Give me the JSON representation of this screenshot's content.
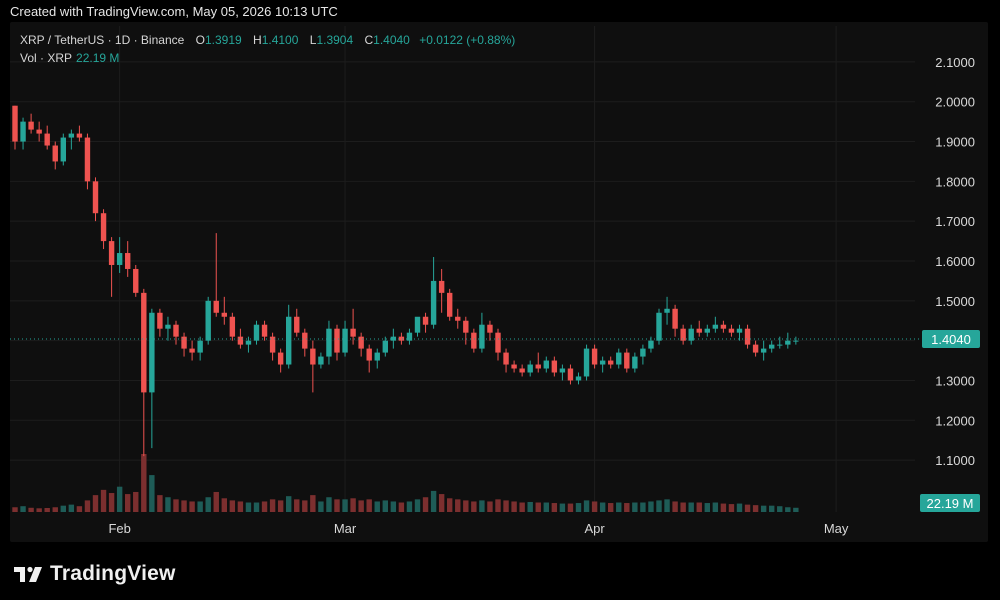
{
  "caption": "Created with TradingView.com, May 05, 2026 10:13 UTC",
  "legend": {
    "symbol": "XRP / TetherUS · 1D · Binance",
    "o_label": "O",
    "o_value": "1.3919",
    "h_label": "H",
    "h_value": "1.4100",
    "l_label": "L",
    "l_value": "1.3904",
    "c_label": "C",
    "c_value": "1.4040",
    "change": "+0.0122 (+0.88%)",
    "vol_label": "Vol · XRP",
    "vol_value": "22.19 M"
  },
  "brand": "TradingView",
  "colors": {
    "up": "#26a69a",
    "down": "#ef5350",
    "up_vol": "#1e5c57",
    "down_vol": "#7c2f2f",
    "bg": "#0f0f0f"
  },
  "chart_data": {
    "type": "candlestick",
    "title": "XRP / TetherUS · 1D · Binance",
    "ylim": [
      1.05,
      2.15
    ],
    "y_ticks": [
      2.1,
      2.0,
      1.9,
      1.8,
      1.7,
      1.6,
      1.5,
      1.4,
      1.3,
      1.2,
      1.1
    ],
    "y_tick_labels": [
      "2.1000",
      "2.0000",
      "1.9000",
      "1.8000",
      "1.7000",
      "1.6000",
      "1.5000",
      "1.4000",
      "1.3000",
      "1.2000",
      "1.1000"
    ],
    "x_tick_labels": [
      {
        "label": "Feb",
        "index": 13
      },
      {
        "label": "Mar",
        "index": 41
      },
      {
        "label": "Apr",
        "index": 72
      },
      {
        "label": "May",
        "index": 102
      }
    ],
    "last_price": 1.404,
    "last_price_label": "1.4040",
    "last_volume_label": "22.19 M",
    "grid": true,
    "candles": [
      [
        1.99,
        1.99,
        1.88,
        1.9
      ],
      [
        1.9,
        1.96,
        1.88,
        1.95
      ],
      [
        1.95,
        1.97,
        1.92,
        1.93
      ],
      [
        1.93,
        1.95,
        1.9,
        1.92
      ],
      [
        1.92,
        1.94,
        1.88,
        1.89
      ],
      [
        1.89,
        1.9,
        1.83,
        1.85
      ],
      [
        1.85,
        1.92,
        1.84,
        1.91
      ],
      [
        1.91,
        1.93,
        1.88,
        1.92
      ],
      [
        1.92,
        1.94,
        1.9,
        1.91
      ],
      [
        1.91,
        1.92,
        1.78,
        1.8
      ],
      [
        1.8,
        1.81,
        1.7,
        1.72
      ],
      [
        1.72,
        1.73,
        1.63,
        1.65
      ],
      [
        1.65,
        1.66,
        1.51,
        1.59
      ],
      [
        1.59,
        1.66,
        1.57,
        1.62
      ],
      [
        1.62,
        1.65,
        1.56,
        1.58
      ],
      [
        1.58,
        1.59,
        1.51,
        1.52
      ],
      [
        1.52,
        1.53,
        1.11,
        1.27
      ],
      [
        1.27,
        1.48,
        1.13,
        1.47
      ],
      [
        1.47,
        1.48,
        1.41,
        1.43
      ],
      [
        1.43,
        1.46,
        1.4,
        1.44
      ],
      [
        1.44,
        1.45,
        1.39,
        1.41
      ],
      [
        1.41,
        1.42,
        1.36,
        1.38
      ],
      [
        1.38,
        1.4,
        1.35,
        1.37
      ],
      [
        1.37,
        1.41,
        1.35,
        1.4
      ],
      [
        1.4,
        1.51,
        1.39,
        1.5
      ],
      [
        1.5,
        1.67,
        1.46,
        1.47
      ],
      [
        1.47,
        1.51,
        1.44,
        1.46
      ],
      [
        1.46,
        1.47,
        1.4,
        1.41
      ],
      [
        1.41,
        1.43,
        1.38,
        1.39
      ],
      [
        1.39,
        1.41,
        1.37,
        1.4
      ],
      [
        1.4,
        1.45,
        1.39,
        1.44
      ],
      [
        1.44,
        1.45,
        1.4,
        1.41
      ],
      [
        1.41,
        1.42,
        1.35,
        1.37
      ],
      [
        1.37,
        1.38,
        1.32,
        1.34
      ],
      [
        1.34,
        1.49,
        1.33,
        1.46
      ],
      [
        1.46,
        1.48,
        1.41,
        1.42
      ],
      [
        1.42,
        1.43,
        1.36,
        1.38
      ],
      [
        1.38,
        1.4,
        1.27,
        1.34
      ],
      [
        1.34,
        1.37,
        1.33,
        1.36
      ],
      [
        1.36,
        1.45,
        1.34,
        1.43
      ],
      [
        1.43,
        1.44,
        1.35,
        1.37
      ],
      [
        1.37,
        1.45,
        1.36,
        1.43
      ],
      [
        1.43,
        1.48,
        1.39,
        1.41
      ],
      [
        1.41,
        1.42,
        1.36,
        1.38
      ],
      [
        1.38,
        1.39,
        1.32,
        1.35
      ],
      [
        1.35,
        1.38,
        1.33,
        1.37
      ],
      [
        1.37,
        1.41,
        1.36,
        1.4
      ],
      [
        1.4,
        1.43,
        1.38,
        1.41
      ],
      [
        1.41,
        1.42,
        1.39,
        1.4
      ],
      [
        1.4,
        1.43,
        1.39,
        1.42
      ],
      [
        1.42,
        1.45,
        1.41,
        1.46
      ],
      [
        1.46,
        1.47,
        1.42,
        1.44
      ],
      [
        1.44,
        1.61,
        1.43,
        1.55
      ],
      [
        1.55,
        1.58,
        1.47,
        1.52
      ],
      [
        1.52,
        1.53,
        1.45,
        1.46
      ],
      [
        1.46,
        1.48,
        1.43,
        1.45
      ],
      [
        1.45,
        1.46,
        1.39,
        1.42
      ],
      [
        1.42,
        1.43,
        1.37,
        1.38
      ],
      [
        1.38,
        1.47,
        1.37,
        1.44
      ],
      [
        1.44,
        1.45,
        1.4,
        1.42
      ],
      [
        1.42,
        1.43,
        1.35,
        1.37
      ],
      [
        1.37,
        1.38,
        1.32,
        1.34
      ],
      [
        1.34,
        1.35,
        1.32,
        1.33
      ],
      [
        1.33,
        1.34,
        1.31,
        1.32
      ],
      [
        1.32,
        1.35,
        1.31,
        1.34
      ],
      [
        1.34,
        1.37,
        1.32,
        1.33
      ],
      [
        1.33,
        1.36,
        1.32,
        1.35
      ],
      [
        1.35,
        1.36,
        1.31,
        1.32
      ],
      [
        1.32,
        1.34,
        1.3,
        1.33
      ],
      [
        1.33,
        1.34,
        1.29,
        1.3
      ],
      [
        1.3,
        1.32,
        1.29,
        1.31
      ],
      [
        1.31,
        1.39,
        1.3,
        1.38
      ],
      [
        1.38,
        1.39,
        1.33,
        1.34
      ],
      [
        1.34,
        1.36,
        1.32,
        1.35
      ],
      [
        1.35,
        1.36,
        1.33,
        1.34
      ],
      [
        1.34,
        1.38,
        1.33,
        1.37
      ],
      [
        1.37,
        1.38,
        1.32,
        1.33
      ],
      [
        1.33,
        1.37,
        1.32,
        1.36
      ],
      [
        1.36,
        1.39,
        1.34,
        1.38
      ],
      [
        1.38,
        1.41,
        1.37,
        1.4
      ],
      [
        1.4,
        1.48,
        1.39,
        1.47
      ],
      [
        1.47,
        1.51,
        1.44,
        1.48
      ],
      [
        1.48,
        1.49,
        1.41,
        1.43
      ],
      [
        1.43,
        1.44,
        1.39,
        1.4
      ],
      [
        1.4,
        1.44,
        1.39,
        1.43
      ],
      [
        1.43,
        1.45,
        1.41,
        1.42
      ],
      [
        1.42,
        1.44,
        1.41,
        1.43
      ],
      [
        1.43,
        1.46,
        1.42,
        1.44
      ],
      [
        1.44,
        1.45,
        1.42,
        1.43
      ],
      [
        1.43,
        1.44,
        1.41,
        1.42
      ],
      [
        1.42,
        1.44,
        1.4,
        1.43
      ],
      [
        1.43,
        1.44,
        1.38,
        1.39
      ],
      [
        1.39,
        1.4,
        1.36,
        1.37
      ],
      [
        1.37,
        1.4,
        1.35,
        1.38
      ],
      [
        1.38,
        1.4,
        1.37,
        1.39
      ],
      [
        1.39,
        1.41,
        1.38,
        1.39
      ],
      [
        1.39,
        1.42,
        1.38,
        1.4
      ],
      [
        1.4,
        1.41,
        1.39,
        1.4
      ]
    ],
    "volumes": [
      0.45,
      0.55,
      0.4,
      0.35,
      0.38,
      0.45,
      0.6,
      0.7,
      0.55,
      1.1,
      1.6,
      2.1,
      1.8,
      2.4,
      1.7,
      1.9,
      5.5,
      3.5,
      1.6,
      1.4,
      1.2,
      1.1,
      1.0,
      1.0,
      1.4,
      1.9,
      1.3,
      1.1,
      1.0,
      0.9,
      0.9,
      1.0,
      1.2,
      1.1,
      1.5,
      1.2,
      1.1,
      1.6,
      1.0,
      1.4,
      1.2,
      1.2,
      1.3,
      1.1,
      1.2,
      1.0,
      1.1,
      1.0,
      0.9,
      1.0,
      1.2,
      1.4,
      2.0,
      1.7,
      1.3,
      1.2,
      1.1,
      1.0,
      1.1,
      1.0,
      1.2,
      1.1,
      1.0,
      0.9,
      0.95,
      0.9,
      0.9,
      0.85,
      0.8,
      0.8,
      0.85,
      1.1,
      1.0,
      0.9,
      0.85,
      0.9,
      0.85,
      0.9,
      0.9,
      1.0,
      1.1,
      1.2,
      1.0,
      0.9,
      0.9,
      0.9,
      0.85,
      0.9,
      0.8,
      0.75,
      0.8,
      0.7,
      0.65,
      0.6,
      0.6,
      0.55,
      0.45,
      0.4
    ]
  }
}
